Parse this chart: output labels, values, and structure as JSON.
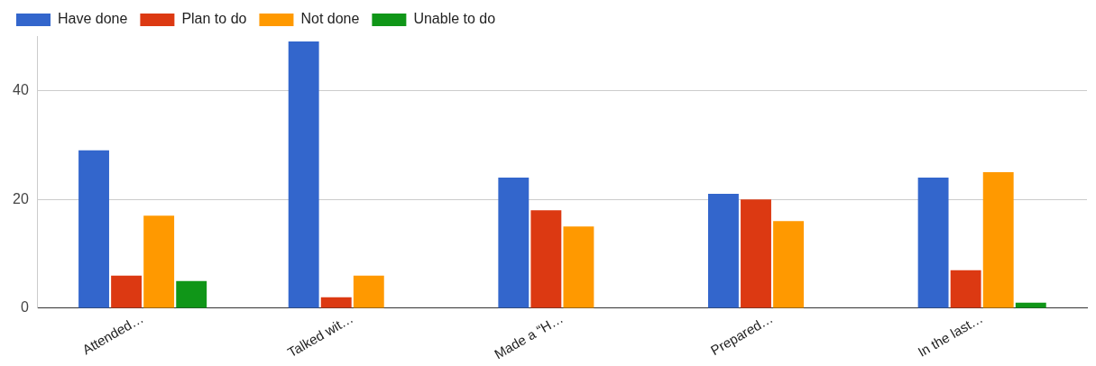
{
  "chart_data": {
    "type": "bar",
    "categories": [
      "Attended…",
      "Talked wit…",
      "Made a “H…",
      "Prepared…",
      "In the last…"
    ],
    "series": [
      {
        "name": "Have done",
        "color": "#3366cc",
        "values": [
          29,
          49,
          24,
          21,
          24
        ]
      },
      {
        "name": "Plan to do",
        "color": "#dc3912",
        "values": [
          6,
          2,
          18,
          20,
          7
        ]
      },
      {
        "name": "Not done",
        "color": "#ff9900",
        "values": [
          17,
          6,
          15,
          16,
          25
        ]
      },
      {
        "name": "Unable to do",
        "color": "#109618",
        "values": [
          5,
          0,
          0,
          0,
          1
        ]
      }
    ],
    "ylim": [
      0,
      50
    ],
    "yticks": [
      0,
      20,
      40
    ],
    "grid": "y",
    "legend": "top left"
  }
}
